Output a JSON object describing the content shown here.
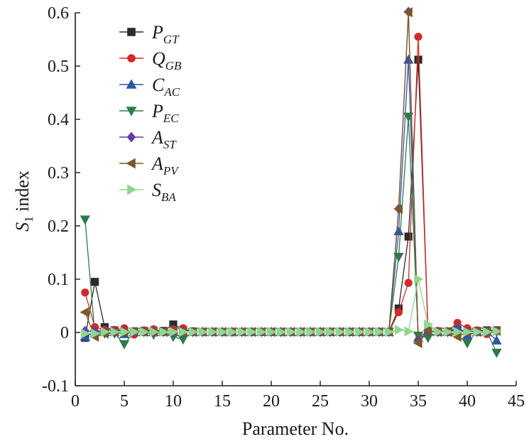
{
  "chart_data": {
    "type": "line",
    "title": "",
    "xlabel": "Parameter No.",
    "ylabel": {
      "main": "S",
      "sub": "1",
      "rest": " index"
    },
    "xlim": [
      0,
      45
    ],
    "ylim": [
      -0.1,
      0.6
    ],
    "xticks": [
      0,
      5,
      10,
      15,
      20,
      25,
      30,
      35,
      40,
      45
    ],
    "yticks": [
      -0.1,
      0,
      0.1,
      0.2,
      0.3,
      0.4,
      0.5,
      0.6
    ],
    "ytick_labels": [
      "-0.1",
      "0",
      "0.1",
      "0.2",
      "0.3",
      "0.4",
      "0.5",
      "0.6"
    ],
    "grid": false,
    "legend_position": "top-left",
    "x": [
      1,
      2,
      3,
      4,
      5,
      6,
      7,
      8,
      9,
      10,
      11,
      12,
      13,
      14,
      15,
      16,
      17,
      18,
      19,
      20,
      21,
      22,
      23,
      24,
      25,
      26,
      27,
      28,
      29,
      30,
      31,
      32,
      33,
      34,
      35,
      36,
      37,
      38,
      39,
      40,
      41,
      42,
      43
    ],
    "series": [
      {
        "name": "P",
        "sub": "GT",
        "color": "#2b2b2b",
        "marker": "square",
        "values": [
          -0.01,
          0.095,
          0.01,
          0.004,
          0.003,
          0.002,
          0.003,
          0.003,
          0.003,
          0.015,
          0.005,
          0.002,
          0.001,
          0.001,
          0.001,
          0.001,
          0.001,
          0.001,
          0.001,
          0.001,
          0.001,
          0.001,
          0.001,
          0.001,
          0.001,
          0.001,
          0.001,
          0.001,
          0.001,
          0.001,
          0.001,
          0.001,
          0.045,
          0.18,
          0.512,
          0.003,
          0.002,
          0.002,
          0.005,
          0.002,
          0.003,
          0.004,
          0.004
        ]
      },
      {
        "name": "Q",
        "sub": "GB",
        "color": "#d42a2a",
        "marker": "circle",
        "values": [
          0.075,
          0.01,
          0.005,
          0.005,
          0.008,
          -0.004,
          0.004,
          0.006,
          0.002,
          0.006,
          0.008,
          0.001,
          0.001,
          0.001,
          0.001,
          0.001,
          0.001,
          0.001,
          0.001,
          0.001,
          0.001,
          0.001,
          0.001,
          0.001,
          0.001,
          0.001,
          0.001,
          0.001,
          0.001,
          0.001,
          0.001,
          0.001,
          0.038,
          0.093,
          0.555,
          0.002,
          0.003,
          0.002,
          0.018,
          0.008,
          0.004,
          -0.003,
          0.003
        ]
      },
      {
        "name": "C",
        "sub": "AC",
        "color": "#2f55a5",
        "marker": "triangle-up",
        "values": [
          -0.008,
          0.002,
          0.001,
          0.001,
          -0.003,
          0.001,
          0.001,
          0.001,
          0.001,
          0.001,
          0.001,
          0.001,
          0.001,
          0.001,
          0.001,
          0.001,
          0.001,
          0.001,
          0.001,
          0.001,
          0.001,
          0.001,
          0.001,
          0.001,
          0.001,
          0.001,
          0.001,
          0.001,
          0.001,
          0.001,
          0.001,
          0.001,
          0.19,
          0.512,
          -0.01,
          0.003,
          0.001,
          0.001,
          0.01,
          -0.005,
          0.001,
          0.002,
          -0.015
        ]
      },
      {
        "name": "P",
        "sub": "EC",
        "color": "#2e7a4a",
        "marker": "triangle-down",
        "values": [
          0.212,
          -0.003,
          -0.002,
          -0.002,
          -0.022,
          0.001,
          0.001,
          -0.004,
          0.001,
          -0.008,
          -0.013,
          0.001,
          0.001,
          0.001,
          0.001,
          0.001,
          0.001,
          0.001,
          0.001,
          0.001,
          0.001,
          0.001,
          0.001,
          0.001,
          0.001,
          0.001,
          0.001,
          0.001,
          0.001,
          0.001,
          0.001,
          0.001,
          0.142,
          0.405,
          -0.006,
          -0.01,
          0.001,
          0.001,
          -0.005,
          -0.02,
          0.001,
          0.002,
          -0.038
        ]
      },
      {
        "name": "A",
        "sub": "ST",
        "color": "#6a3aa8",
        "marker": "diamond",
        "values": [
          0.003,
          0.001,
          0.001,
          0.001,
          0.001,
          0.001,
          0.001,
          0.001,
          0.001,
          0.001,
          0.001,
          0.001,
          0.001,
          0.001,
          0.001,
          0.001,
          0.001,
          0.001,
          0.001,
          0.001,
          0.001,
          0.001,
          0.001,
          0.001,
          0.001,
          0.001,
          0.001,
          0.001,
          0.001,
          0.001,
          0.001,
          0.001,
          0.232,
          0.602,
          -0.015,
          0.002,
          0.001,
          0.001,
          0.001,
          0.001,
          0.001,
          0.001,
          0.002
        ]
      },
      {
        "name": "A",
        "sub": "PV",
        "color": "#7a5a2a",
        "marker": "triangle-left",
        "values": [
          0.038,
          -0.008,
          -0.002,
          0.001,
          0.001,
          0.001,
          0.001,
          0.001,
          0.001,
          0.001,
          0.001,
          0.001,
          0.001,
          0.001,
          0.001,
          0.001,
          0.001,
          0.001,
          0.001,
          0.001,
          0.001,
          0.001,
          0.001,
          0.001,
          0.001,
          0.001,
          0.001,
          0.001,
          0.001,
          0.001,
          0.001,
          0.001,
          0.232,
          0.601,
          -0.02,
          0.003,
          0.001,
          0.001,
          -0.008,
          0.001,
          0.001,
          0.002,
          0.003
        ]
      },
      {
        "name": "S",
        "sub": "BA",
        "color": "#8fd68f",
        "marker": "triangle-right",
        "values": [
          -0.002,
          -0.002,
          0.001,
          0.001,
          0.001,
          0.001,
          0.001,
          0.001,
          0.001,
          0.001,
          0.001,
          0.001,
          0.001,
          0.001,
          0.001,
          0.001,
          0.001,
          0.001,
          0.001,
          0.001,
          0.001,
          0.001,
          0.001,
          0.001,
          0.001,
          0.001,
          0.001,
          0.001,
          0.001,
          0.001,
          0.001,
          0.001,
          0.005,
          0.002,
          0.1,
          0.015,
          0.001,
          0.001,
          0.001,
          0.001,
          0.001,
          0.001,
          0.002
        ]
      }
    ]
  }
}
